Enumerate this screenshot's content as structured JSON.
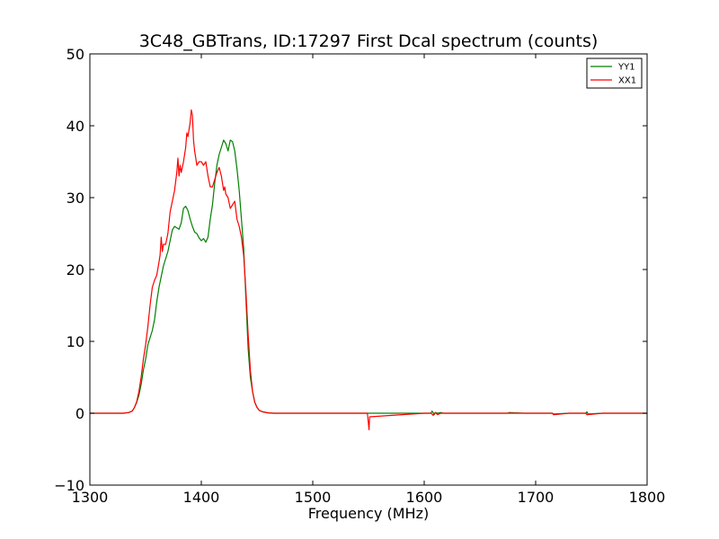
{
  "chart_data": {
    "type": "line",
    "title": "3C48_GBTrans, ID:17297 First Dcal spectrum (counts)",
    "xlabel": "Frequency (MHz)",
    "ylabel": "",
    "xlim": [
      1300,
      1800
    ],
    "ylim": [
      -10,
      50
    ],
    "xticks": [
      1300,
      1400,
      1500,
      1600,
      1700,
      1800
    ],
    "yticks": [
      -10,
      0,
      10,
      20,
      30,
      40,
      50
    ],
    "xtick_labels": [
      "1300",
      "1400",
      "1500",
      "1600",
      "1700",
      "1800"
    ],
    "ytick_labels": [
      "−10",
      "0",
      "10",
      "20",
      "30",
      "40",
      "50"
    ],
    "grid": false,
    "legend_position": "top-right",
    "series": [
      {
        "name": "YY1",
        "color": "#008000",
        "x": [
          1300,
          1330,
          1335,
          1338,
          1340,
          1342,
          1344,
          1346,
          1348,
          1350,
          1352,
          1354,
          1356,
          1358,
          1360,
          1362,
          1364,
          1366,
          1368,
          1370,
          1372,
          1374,
          1376,
          1378,
          1380,
          1382,
          1384,
          1386,
          1388,
          1390,
          1392,
          1394,
          1396,
          1398,
          1400,
          1402,
          1404,
          1406,
          1408,
          1410,
          1412,
          1414,
          1416,
          1418,
          1420,
          1422,
          1424,
          1426,
          1428,
          1430,
          1432,
          1434,
          1436,
          1438,
          1440,
          1442,
          1444,
          1446,
          1448,
          1450,
          1452,
          1455,
          1460,
          1465,
          1470,
          1480,
          1500,
          1550,
          1600,
          1606,
          1607,
          1608,
          1609,
          1610,
          1612,
          1615,
          1617,
          1620,
          1640,
          1660,
          1675,
          1676,
          1690,
          1715,
          1716,
          1730,
          1745,
          1746,
          1747,
          1760,
          1800
        ],
        "y": [
          0,
          0,
          0.1,
          0.3,
          0.8,
          1.5,
          2.5,
          4,
          6,
          7.5,
          9.5,
          10.5,
          11.5,
          13,
          15.5,
          17.5,
          19,
          20.5,
          21.5,
          22.5,
          24,
          25.5,
          26,
          25.8,
          25.6,
          26.5,
          28.5,
          28.8,
          28.2,
          27,
          26,
          25.2,
          25,
          24.4,
          24,
          24.3,
          23.8,
          24.5,
          27,
          29,
          32,
          34.5,
          36,
          37,
          38,
          37.5,
          36.5,
          38,
          37.8,
          36.5,
          34,
          31,
          27,
          23,
          16,
          9,
          5,
          3,
          1.5,
          0.8,
          0.4,
          0.2,
          0.05,
          0,
          0,
          0,
          0,
          0,
          0,
          0,
          0.3,
          0.1,
          -0.2,
          0.1,
          0,
          0.1,
          0,
          0,
          0,
          0,
          0,
          0.1,
          0,
          0,
          -0.1,
          0,
          0,
          0.2,
          -0.1,
          0,
          0
        ]
      },
      {
        "name": "XX1",
        "color": "#ff0000",
        "x": [
          1300,
          1330,
          1335,
          1338,
          1340,
          1342,
          1344,
          1346,
          1348,
          1350,
          1352,
          1354,
          1356,
          1358,
          1360,
          1362,
          1363,
          1364,
          1365,
          1366,
          1368,
          1370,
          1372,
          1374,
          1376,
          1378,
          1379,
          1380,
          1381,
          1382,
          1384,
          1386,
          1387,
          1388,
          1389,
          1390,
          1391,
          1392,
          1393,
          1394,
          1396,
          1398,
          1400,
          1402,
          1404,
          1406,
          1408,
          1410,
          1412,
          1414,
          1416,
          1418,
          1420,
          1421,
          1422,
          1424,
          1426,
          1428,
          1430,
          1432,
          1434,
          1436,
          1438,
          1440,
          1442,
          1444,
          1446,
          1448,
          1450,
          1452,
          1455,
          1460,
          1465,
          1470,
          1480,
          1500,
          1549,
          1550,
          1550.5,
          1551,
          1600,
          1606,
          1607,
          1608,
          1610,
          1612,
          1615,
          1620,
          1640,
          1660,
          1700,
          1715,
          1716,
          1730,
          1745,
          1746,
          1760,
          1800
        ],
        "y": [
          0,
          0,
          0.1,
          0.3,
          0.8,
          1.6,
          3,
          5,
          7.5,
          9.5,
          12,
          15,
          17.5,
          18.5,
          19.2,
          21,
          22,
          24.5,
          22.5,
          23.5,
          23.5,
          25,
          28,
          29.5,
          31,
          33.5,
          35.5,
          33,
          34.5,
          33.5,
          35,
          37,
          39,
          38.5,
          39.5,
          40.5,
          42.2,
          41.5,
          38,
          36.5,
          34.5,
          35,
          35,
          34.5,
          35,
          33,
          31.5,
          31.5,
          32.5,
          33.5,
          34.2,
          33,
          31,
          31.5,
          30.5,
          30,
          28.5,
          29,
          29.5,
          27,
          26,
          24.5,
          22,
          17,
          11,
          6,
          3,
          1.5,
          0.8,
          0.4,
          0.2,
          0.05,
          0,
          0,
          0,
          0,
          0,
          -1.5,
          -2.3,
          -0.5,
          0,
          0,
          -0.1,
          -0.3,
          0.1,
          -0.2,
          0,
          0,
          0,
          0,
          0,
          0,
          -0.2,
          0,
          0,
          -0.2,
          0,
          0
        ]
      }
    ]
  }
}
